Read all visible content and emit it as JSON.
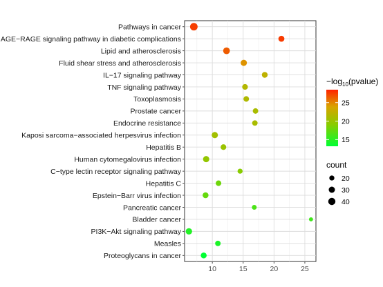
{
  "chart_data": {
    "type": "scatter",
    "title": "",
    "xlabel": "",
    "ylabel": "",
    "xlim": [
      5.5,
      26.8
    ],
    "xticks": [
      10,
      15,
      20,
      25
    ],
    "grid": true,
    "categories": [
      "Pathways in cancer",
      "AGE−RAGE signaling pathway in diabetic complications",
      "Lipid and atherosclerosis",
      "Fluid shear stress and atherosclerosis",
      "IL−17 signaling pathway",
      "TNF signaling pathway",
      "Toxoplasmosis",
      "Prostate cancer",
      "Endocrine resistance",
      "Kaposi sarcoma−associated herpesvirus infection",
      "Hepatitis B",
      "Human cytomegalovirus infection",
      "C−type lectin receptor signaling pathway",
      "Hepatitis C",
      "Epstein−Barr virus infection",
      "Pancreatic cancer",
      "Bladder cancer",
      "PI3K−Akt signaling pathway",
      "Measles",
      "Proteoglycans in cancer"
    ],
    "points": [
      {
        "x": 7.0,
        "count": 44,
        "neg_log10_p": 27.5
      },
      {
        "x": 21.2,
        "count": 28,
        "neg_log10_p": 27.6
      },
      {
        "x": 12.3,
        "count": 35,
        "neg_log10_p": 26.5
      },
      {
        "x": 15.1,
        "count": 30,
        "neg_log10_p": 24.5
      },
      {
        "x": 18.5,
        "count": 26,
        "neg_log10_p": 22.3
      },
      {
        "x": 15.3,
        "count": 25,
        "neg_log10_p": 21.6
      },
      {
        "x": 15.5,
        "count": 24,
        "neg_log10_p": 21.4
      },
      {
        "x": 17.0,
        "count": 23,
        "neg_log10_p": 21.0
      },
      {
        "x": 16.9,
        "count": 23,
        "neg_log10_p": 21.0
      },
      {
        "x": 10.4,
        "count": 30,
        "neg_log10_p": 20.6
      },
      {
        "x": 11.8,
        "count": 25,
        "neg_log10_p": 20.1
      },
      {
        "x": 9.0,
        "count": 30,
        "neg_log10_p": 19.7
      },
      {
        "x": 14.5,
        "count": 20,
        "neg_log10_p": 19.0
      },
      {
        "x": 11.0,
        "count": 24,
        "neg_log10_p": 17.9
      },
      {
        "x": 8.9,
        "count": 27,
        "neg_log10_p": 17.5
      },
      {
        "x": 16.8,
        "count": 18,
        "neg_log10_p": 16.4
      },
      {
        "x": 26.0,
        "count": 13,
        "neg_log10_p": 15.9
      },
      {
        "x": 6.2,
        "count": 32,
        "neg_log10_p": 14.7
      },
      {
        "x": 10.9,
        "count": 23,
        "neg_log10_p": 14.4
      },
      {
        "x": 8.6,
        "count": 27,
        "neg_log10_p": 13.2
      }
    ],
    "color_legend": {
      "title_prefix": "−log",
      "title_sub": "10",
      "title_suffix": "(pvalue)",
      "ticks": [
        15,
        20,
        25
      ],
      "range": [
        13.2,
        28.5
      ],
      "colors": [
        "#00ff33",
        "#88cc00",
        "#d9a400",
        "#ff2200"
      ]
    },
    "size_legend": {
      "title": "count",
      "values": [
        20,
        30,
        40
      ]
    }
  }
}
